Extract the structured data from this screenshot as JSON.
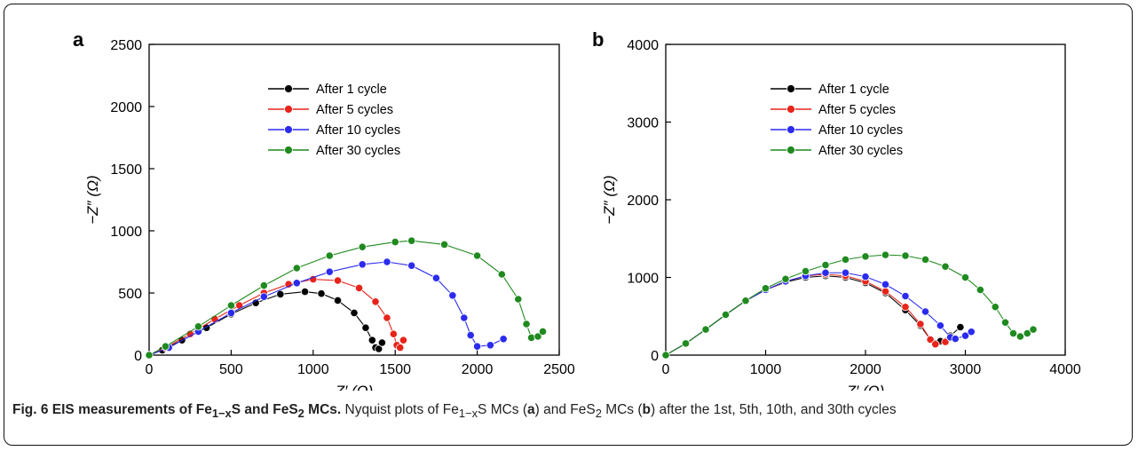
{
  "caption": {
    "lead": "Fig. 6 EIS measurements of Fe",
    "lead_sub": "1−x",
    "lead_mid": "S and FeS",
    "lead_sub2": "2",
    "lead_end": " MCs.",
    "body_a": " Nyquist plots of Fe",
    "body_sub": "1−x",
    "body_b": "S MCs (",
    "body_a_letter": "a",
    "body_c": ") and FeS",
    "body_sub2": "2",
    "body_d": " MCs (",
    "body_b_letter": "b",
    "body_e": ") after the 1st, 5th, 10th, and 30th cycles"
  },
  "colors": {
    "after_1": "#000000",
    "after_5": "#e8231a",
    "after_10": "#2b2bf0",
    "after_30": "#1f8a1f"
  },
  "chart_data": [
    {
      "type": "scatter",
      "panel_label": "a",
      "xlabel": "Z′ (Ω)",
      "ylabel": "−Z″ (Ω)",
      "xlim": [
        0,
        2500
      ],
      "ylim": [
        0,
        2500
      ],
      "xticks": [
        "0",
        "500",
        "1000",
        "1500",
        "2000",
        "2500"
      ],
      "yticks": [
        "0",
        "500",
        "1000",
        "1500",
        "2000",
        "2500"
      ],
      "legend_position": "top-left",
      "series": [
        {
          "name": "After 1 cycle",
          "color_key": "after_1",
          "points": [
            [
              0,
              0
            ],
            [
              80,
              40
            ],
            [
              200,
              120
            ],
            [
              350,
              220
            ],
            [
              500,
              330
            ],
            [
              650,
              420
            ],
            [
              800,
              490
            ],
            [
              950,
              510
            ],
            [
              1050,
              495
            ],
            [
              1150,
              440
            ],
            [
              1250,
              340
            ],
            [
              1320,
              220
            ],
            [
              1360,
              120
            ],
            [
              1380,
              60
            ],
            [
              1400,
              50
            ],
            [
              1420,
              100
            ]
          ]
        },
        {
          "name": "After 5 cycles",
          "color_key": "after_5",
          "points": [
            [
              0,
              0
            ],
            [
              100,
              60
            ],
            [
              250,
              170
            ],
            [
              400,
              290
            ],
            [
              550,
              400
            ],
            [
              700,
              500
            ],
            [
              850,
              570
            ],
            [
              1000,
              610
            ],
            [
              1150,
              600
            ],
            [
              1280,
              540
            ],
            [
              1380,
              430
            ],
            [
              1450,
              300
            ],
            [
              1490,
              170
            ],
            [
              1510,
              80
            ],
            [
              1530,
              60
            ],
            [
              1550,
              120
            ]
          ]
        },
        {
          "name": "After 10 cycles",
          "color_key": "after_10",
          "points": [
            [
              0,
              0
            ],
            [
              120,
              60
            ],
            [
              300,
              190
            ],
            [
              500,
              340
            ],
            [
              700,
              470
            ],
            [
              900,
              580
            ],
            [
              1100,
              670
            ],
            [
              1300,
              730
            ],
            [
              1450,
              750
            ],
            [
              1600,
              720
            ],
            [
              1750,
              620
            ],
            [
              1850,
              480
            ],
            [
              1920,
              300
            ],
            [
              1960,
              160
            ],
            [
              2000,
              70
            ],
            [
              2080,
              80
            ],
            [
              2160,
              130
            ]
          ]
        },
        {
          "name": "After 30 cycles",
          "color_key": "after_30",
          "points": [
            [
              0,
              0
            ],
            [
              100,
              70
            ],
            [
              300,
              230
            ],
            [
              500,
              400
            ],
            [
              700,
              560
            ],
            [
              900,
              700
            ],
            [
              1100,
              800
            ],
            [
              1300,
              870
            ],
            [
              1500,
              910
            ],
            [
              1600,
              920
            ],
            [
              1800,
              890
            ],
            [
              2000,
              800
            ],
            [
              2150,
              650
            ],
            [
              2250,
              450
            ],
            [
              2300,
              250
            ],
            [
              2330,
              140
            ],
            [
              2370,
              150
            ],
            [
              2400,
              190
            ]
          ]
        }
      ]
    },
    {
      "type": "scatter",
      "panel_label": "b",
      "xlabel": "Z′ (Ω)",
      "ylabel": "−Z″ (Ω)",
      "xlim": [
        0,
        4000
      ],
      "ylim": [
        0,
        4000
      ],
      "xticks": [
        "0",
        "1000",
        "2000",
        "3000",
        "4000"
      ],
      "yticks": [
        "0",
        "1000",
        "2000",
        "3000",
        "4000"
      ],
      "legend_position": "top-left",
      "series": [
        {
          "name": "After 1 cycle",
          "color_key": "after_1",
          "points": [
            [
              0,
              0
            ],
            [
              200,
              150
            ],
            [
              400,
              330
            ],
            [
              600,
              520
            ],
            [
              800,
              700
            ],
            [
              1000,
              840
            ],
            [
              1200,
              940
            ],
            [
              1400,
              1000
            ],
            [
              1600,
              1020
            ],
            [
              1800,
              1000
            ],
            [
              2000,
              930
            ],
            [
              2200,
              800
            ],
            [
              2400,
              580
            ],
            [
              2550,
              380
            ],
            [
              2650,
              200
            ],
            [
              2750,
              180
            ],
            [
              2850,
              250
            ],
            [
              2950,
              360
            ]
          ]
        },
        {
          "name": "After 5 cycles",
          "color_key": "after_5",
          "points": [
            [
              0,
              0
            ],
            [
              200,
              150
            ],
            [
              400,
              330
            ],
            [
              600,
              520
            ],
            [
              800,
              700
            ],
            [
              1000,
              840
            ],
            [
              1200,
              950
            ],
            [
              1400,
              1020
            ],
            [
              1600,
              1040
            ],
            [
              1800,
              1020
            ],
            [
              2000,
              950
            ],
            [
              2200,
              820
            ],
            [
              2400,
              620
            ],
            [
              2550,
              400
            ],
            [
              2650,
              200
            ],
            [
              2700,
              140
            ],
            [
              2800,
              170
            ],
            [
              2850,
              230
            ]
          ]
        },
        {
          "name": "After 10 cycles",
          "color_key": "after_10",
          "points": [
            [
              0,
              0
            ],
            [
              200,
              150
            ],
            [
              400,
              330
            ],
            [
              600,
              520
            ],
            [
              800,
              700
            ],
            [
              1000,
              840
            ],
            [
              1200,
              950
            ],
            [
              1400,
              1020
            ],
            [
              1600,
              1060
            ],
            [
              1800,
              1060
            ],
            [
              2000,
              1010
            ],
            [
              2200,
              910
            ],
            [
              2400,
              760
            ],
            [
              2600,
              560
            ],
            [
              2750,
              380
            ],
            [
              2850,
              230
            ],
            [
              2900,
              210
            ],
            [
              3000,
              250
            ],
            [
              3060,
              300
            ]
          ]
        },
        {
          "name": "After 30 cycles",
          "color_key": "after_30",
          "points": [
            [
              0,
              0
            ],
            [
              200,
              150
            ],
            [
              400,
              330
            ],
            [
              600,
              520
            ],
            [
              800,
              700
            ],
            [
              1000,
              860
            ],
            [
              1200,
              980
            ],
            [
              1400,
              1080
            ],
            [
              1600,
              1160
            ],
            [
              1800,
              1230
            ],
            [
              2000,
              1270
            ],
            [
              2200,
              1290
            ],
            [
              2400,
              1280
            ],
            [
              2600,
              1230
            ],
            [
              2800,
              1140
            ],
            [
              3000,
              1000
            ],
            [
              3150,
              840
            ],
            [
              3300,
              620
            ],
            [
              3400,
              420
            ],
            [
              3480,
              280
            ],
            [
              3550,
              240
            ],
            [
              3620,
              280
            ],
            [
              3680,
              330
            ]
          ]
        }
      ]
    }
  ]
}
